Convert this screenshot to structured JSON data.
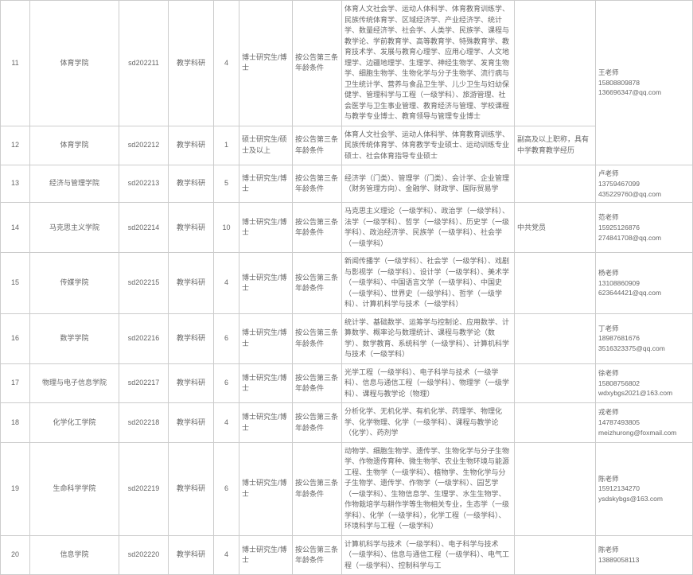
{
  "rows": [
    {
      "idx": "11",
      "dept": "体育学院",
      "code": "sd202211",
      "post": "教学科研",
      "num": "4",
      "edu": "博士研究生/博士",
      "age": "按公告第三条年龄条件",
      "major": "体育人文社会学、运动人体科学、体育教育训练学、民族传统体育学、区域经济学、产业经济学、统计学、数量经济学、社会学、人类学、民族学、课程与教学论、学前教育学、高等教育学、特殊教育学、教育技术学、发展与教育心理学、应用心理学、人文地理学、边疆地理学、生理学、神经生物学、发育生物学、细胞生物学、生物化学与分子生物学、流行病与卫生统计学、营养与食品卫生学、儿少卫生与妇幼保健学、管理科学与工程（一级学科）、旅游管理、社会医学与卫生事业管理、教育经济与管理、学校课程与教学专业博士、教育领导与管理专业博士",
      "req": "",
      "contact": "王老师\n15808809878\n136696347@qq.com"
    },
    {
      "idx": "12",
      "dept": "体育学院",
      "code": "sd202212",
      "post": "教学科研",
      "num": "1",
      "edu": "硕士研究生/硕士及以上",
      "age": "按公告第三条年龄条件",
      "major": "体育人文社会学、运动人体科学、体育教育训练学、民族传统体育学、体育教学专业硕士、运动训练专业硕士、社会体育指导专业硕士",
      "req": "副高及以上职称，具有中学教育教学经历",
      "contact": ""
    },
    {
      "idx": "13",
      "dept": "经济与管理学院",
      "code": "sd202213",
      "post": "教学科研",
      "num": "5",
      "edu": "博士研究生/博士",
      "age": "按公告第三条年龄条件",
      "major": "经济学（门类）、管理学（门类）、会计学、企业管理（财务管理方向）、金融学、财政学、国际贸易学",
      "req": "",
      "contact": "卢老师\n13759467099\n435229760@qq.com"
    },
    {
      "idx": "14",
      "dept": "马克思主义学院",
      "code": "sd202214",
      "post": "教学科研",
      "num": "10",
      "edu": "博士研究生/博士",
      "age": "按公告第三条年龄条件",
      "major": "马克思主义理论（一级学科）、政治学（一级学科）、法学（一级学科）、哲学（一级学科）、历史学（一级学科）、政治经济学、民族学（一级学科）、社会学（一级学科）",
      "req": "中共党员",
      "contact": "范老师\n15925126876\n274841708@qq.com"
    },
    {
      "idx": "15",
      "dept": "传媒学院",
      "code": "sd202215",
      "post": "教学科研",
      "num": "4",
      "edu": "博士研究生/博士",
      "age": "按公告第三条年龄条件",
      "major": "新闻传播学（一级学科）、社会学（一级学科）、戏剧与影视学（一级学科）、设计学（一级学科）、美术学（一级学科）、中国语言文学（一级学科）、中国史（一级学科）、世界史（一级学科）、哲学（一级学科）、计算机科学与技术（一级学科）",
      "req": "",
      "contact": "杨老师\n13108860909\n623644421@qq.com"
    },
    {
      "idx": "16",
      "dept": "数学学院",
      "code": "sd202216",
      "post": "教学科研",
      "num": "6",
      "edu": "博士研究生/博士",
      "age": "按公告第三条年龄条件",
      "major": "统计学、基础数学、运筹学与控制论、应用数学、计算数学、概率论与数理统计、课程与教学论（数学）、数学教育、系统科学（一级学科）、计算机科学与技术（一级学科）",
      "req": "",
      "contact": "丁老师\n18987681676\n3516323375@qq.com"
    },
    {
      "idx": "17",
      "dept": "物理与电子信息学院",
      "code": "sd202217",
      "post": "教学科研",
      "num": "6",
      "edu": "博士研究生/博士",
      "age": "按公告第三条年龄条件",
      "major": "光学工程（一级学科）、电子科学与技术（一级学科）、信息与通信工程（一级学科）、物理学（一级学科）、课程与教学论（物理）",
      "req": "",
      "contact": "徐老师\n15808756802\nwdxybgs2021@163.com"
    },
    {
      "idx": "18",
      "dept": "化学化工学院",
      "code": "sd202218",
      "post": "教学科研",
      "num": "4",
      "edu": "博士研究生/博士",
      "age": "按公告第三条年龄条件",
      "major": "分析化学、无机化学、有机化学、药理学、物理化学、化学物理、化学（一级学科）、课程与教学论（化学）、药剂学",
      "req": "",
      "contact": "戎老师\n14787493805\nmeizhurong@foxmail.com"
    },
    {
      "idx": "19",
      "dept": "生命科学学院",
      "code": "sd202219",
      "post": "教学科研",
      "num": "6",
      "edu": "博士研究生/博士",
      "age": "按公告第三条年龄条件",
      "major": "动物学、细胞生物学、遗传学、生物化学与分子生物学、作物遗传育种、微生物学、农业生物环境与能源工程、生物学（一级学科）、植物学、生物化学与分子生物学、遗传学、作物学（一级学科）、园艺学（一级学科）、生物信息学、生理学、水生生物学、作物栽培学与耕作学等生物相关专业，生态学（一级学科）、化学（一级学科），化学工程（一级学科）、环境科学与工程（一级学科）",
      "req": "",
      "contact": "陈老师\n15912134270\nysdskybgs@163.com"
    },
    {
      "idx": "20",
      "dept": "信息学院",
      "code": "sd202220",
      "post": "教学科研",
      "num": "4",
      "edu": "博士研究生/博士",
      "age": "按公告第三条年龄条件",
      "major": "计算机科学与技术（一级学科）、电子科学与技术（一级学科）、信息与通信工程（一级学科）、电气工程（一级学科）、控制科学与工",
      "req": "",
      "contact": "陈老师\n13889058113"
    }
  ],
  "rowspans": {
    "11": 2
  }
}
